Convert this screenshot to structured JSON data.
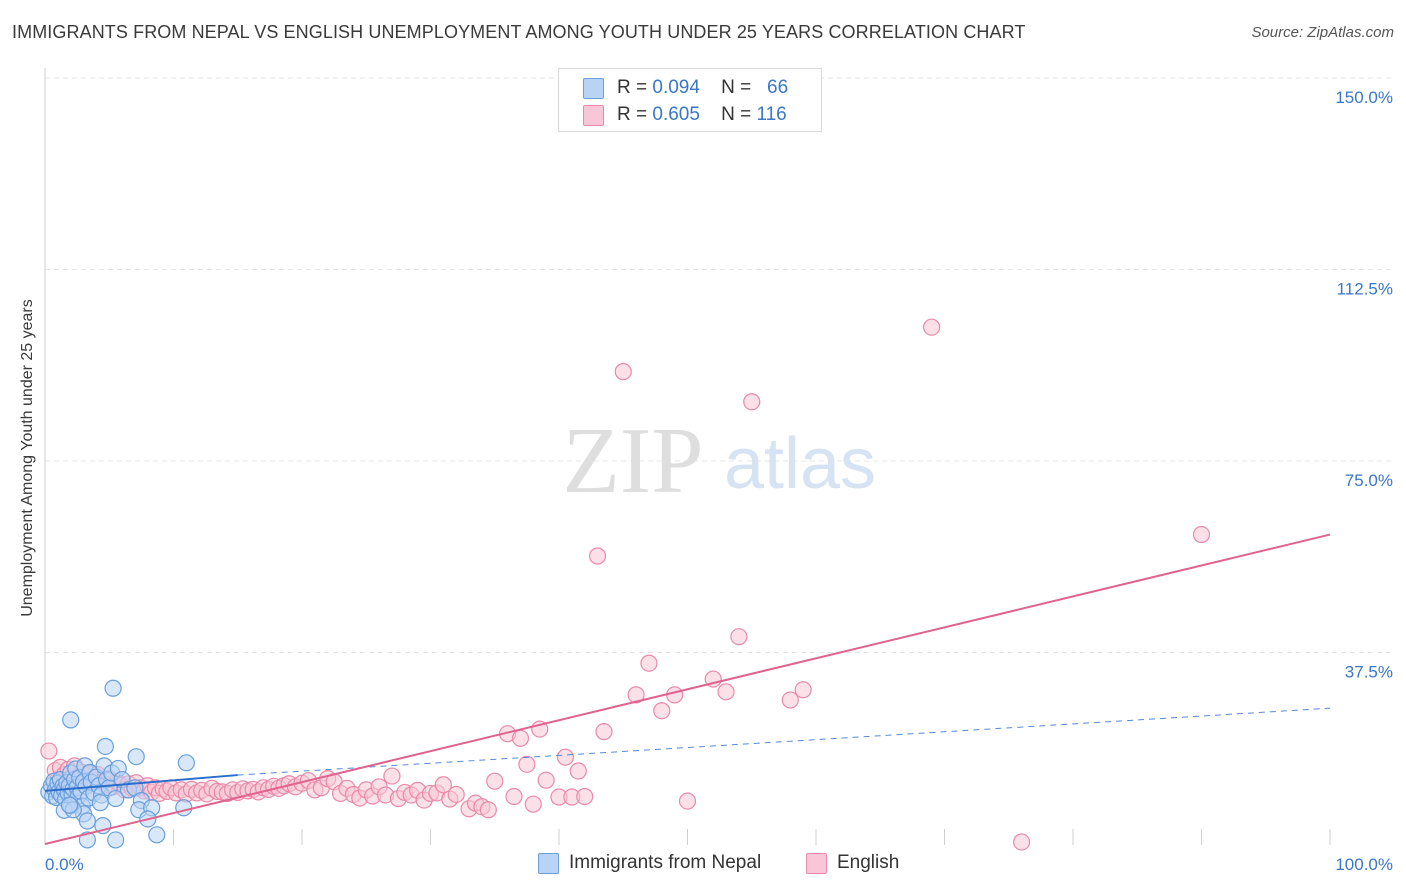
{
  "header": {
    "title": "IMMIGRANTS FROM NEPAL VS ENGLISH UNEMPLOYMENT AMONG YOUTH UNDER 25 YEARS CORRELATION CHART",
    "source": "Source: ZipAtlas.com"
  },
  "watermark": {
    "zip": "ZIP",
    "atlas": "atlas"
  },
  "legend_top": {
    "row1": {
      "r_label": "R =",
      "r_value": "0.094",
      "n_label": "N =",
      "n_value": "66"
    },
    "row2": {
      "r_label": "R =",
      "r_value": "0.605",
      "n_label": "N =",
      "n_value": "116"
    }
  },
  "legend_bottom": {
    "series1": "Immigrants from Nepal",
    "series2": "English"
  },
  "colors": {
    "blue_fill": "#b9d3f5",
    "blue_stroke": "#6a9fdc",
    "blue_line": "#2b6ccc",
    "pink_fill": "#f8c6d6",
    "pink_stroke": "#e88aaa",
    "pink_line": "#e0628e",
    "tick_label": "#3a77c8",
    "grid": "#e4e4e4"
  },
  "chart_data": {
    "type": "scatter",
    "title": "IMMIGRANTS FROM NEPAL VS ENGLISH UNEMPLOYMENT AMONG YOUTH UNDER 25 YEARS CORRELATION CHART",
    "xlabel": "",
    "ylabel": "Unemployment Among Youth under 25 years",
    "xlim": [
      0,
      100
    ],
    "ylim": [
      0,
      150
    ],
    "x_tick_labels": [
      "0.0%",
      "100.0%"
    ],
    "y_ticks": [
      37.5,
      75.0,
      112.5,
      150.0
    ],
    "y_tick_labels": [
      "37.5%",
      "75.0%",
      "112.5%",
      "150.0%"
    ],
    "legend_position": "top-center",
    "series": [
      {
        "name": "Immigrants from Nepal",
        "r": 0.094,
        "n": 66,
        "trend": {
          "x0": 0,
          "y0": 10.4,
          "x1": 15,
          "y1": 13.5,
          "dashed_extension_to_x": 100,
          "dashed_extension_y": 26.6
        },
        "points": [
          [
            0.3,
            10.2
          ],
          [
            0.5,
            11.4
          ],
          [
            0.6,
            9.4
          ],
          [
            0.7,
            12.3
          ],
          [
            0.8,
            10.5
          ],
          [
            0.9,
            9.1
          ],
          [
            1.0,
            11.9
          ],
          [
            1.1,
            10.2
          ],
          [
            1.2,
            12.6
          ],
          [
            1.3,
            9.5
          ],
          [
            1.4,
            11.3
          ],
          [
            1.5,
            10.6
          ],
          [
            1.6,
            8.8
          ],
          [
            1.7,
            12.0
          ],
          [
            1.8,
            10.0
          ],
          [
            1.9,
            11.4
          ],
          [
            2.0,
            13.9
          ],
          [
            2.1,
            9.7
          ],
          [
            2.2,
            10.8
          ],
          [
            2.3,
            12.6
          ],
          [
            2.4,
            14.7
          ],
          [
            2.5,
            11.1
          ],
          [
            2.6,
            9.4
          ],
          [
            2.7,
            13.0
          ],
          [
            2.8,
            10.3
          ],
          [
            2.9,
            7.4
          ],
          [
            3.0,
            12.2
          ],
          [
            3.1,
            15.3
          ],
          [
            3.2,
            11.3
          ],
          [
            3.4,
            9.0
          ],
          [
            3.5,
            14.0
          ],
          [
            3.6,
            12.1
          ],
          [
            3.8,
            10.0
          ],
          [
            4.0,
            13.1
          ],
          [
            4.2,
            11.4
          ],
          [
            4.4,
            9.6
          ],
          [
            4.6,
            15.3
          ],
          [
            4.8,
            12.6
          ],
          [
            5.0,
            11.0
          ],
          [
            5.2,
            13.9
          ],
          [
            5.5,
            8.9
          ],
          [
            5.7,
            14.8
          ],
          [
            6.0,
            12.6
          ],
          [
            6.5,
            10.6
          ],
          [
            7.0,
            11.0
          ],
          [
            7.5,
            8.5
          ],
          [
            4.3,
            8.1
          ],
          [
            3.0,
            5.9
          ],
          [
            2.0,
            7.5
          ],
          [
            1.5,
            6.6
          ],
          [
            3.3,
            4.5
          ],
          [
            4.5,
            3.6
          ],
          [
            2.2,
            6.7
          ],
          [
            1.9,
            7.6
          ],
          [
            2.0,
            24.3
          ],
          [
            5.3,
            30.5
          ],
          [
            4.7,
            19.1
          ],
          [
            7.3,
            6.7
          ],
          [
            8.3,
            7.1
          ],
          [
            10.8,
            7.1
          ],
          [
            7.1,
            17.1
          ],
          [
            11.0,
            15.9
          ],
          [
            8.7,
            1.8
          ],
          [
            3.3,
            0.8
          ],
          [
            5.5,
            0.8
          ],
          [
            8.0,
            4.9
          ]
        ]
      },
      {
        "name": "English",
        "r": 0.605,
        "n": 116,
        "trend": {
          "x0": 0,
          "y0": 0.0,
          "x1": 100,
          "y1": 60.6
        },
        "points": [
          [
            0.3,
            18.2
          ],
          [
            0.8,
            14.4
          ],
          [
            1.0,
            12.6
          ],
          [
            1.2,
            15.0
          ],
          [
            1.5,
            13.6
          ],
          [
            1.8,
            14.6
          ],
          [
            2.0,
            12.8
          ],
          [
            2.3,
            15.3
          ],
          [
            2.6,
            13.3
          ],
          [
            2.9,
            14.0
          ],
          [
            3.2,
            12.5
          ],
          [
            3.5,
            13.8
          ],
          [
            3.8,
            12.4
          ],
          [
            4.1,
            13.6
          ],
          [
            4.4,
            12.0
          ],
          [
            4.7,
            11.6
          ],
          [
            5.0,
            12.8
          ],
          [
            5.3,
            11.2
          ],
          [
            5.6,
            12.2
          ],
          [
            5.9,
            11.5
          ],
          [
            6.2,
            10.6
          ],
          [
            6.5,
            11.8
          ],
          [
            6.8,
            10.9
          ],
          [
            7.1,
            12.0
          ],
          [
            7.4,
            11.0
          ],
          [
            7.7,
            10.4
          ],
          [
            8.0,
            11.4
          ],
          [
            8.3,
            10.1
          ],
          [
            8.6,
            11.0
          ],
          [
            8.9,
            9.9
          ],
          [
            9.2,
            10.8
          ],
          [
            9.5,
            10.3
          ],
          [
            9.8,
            11.0
          ],
          [
            10.2,
            10.0
          ],
          [
            10.6,
            10.6
          ],
          [
            11.0,
            9.8
          ],
          [
            11.4,
            10.7
          ],
          [
            11.8,
            10.0
          ],
          [
            12.2,
            10.5
          ],
          [
            12.6,
            9.8
          ],
          [
            13.0,
            10.9
          ],
          [
            13.4,
            10.3
          ],
          [
            13.8,
            10.2
          ],
          [
            14.2,
            9.9
          ],
          [
            14.6,
            10.6
          ],
          [
            15.0,
            10.1
          ],
          [
            15.4,
            10.8
          ],
          [
            15.8,
            10.4
          ],
          [
            16.2,
            10.7
          ],
          [
            16.6,
            10.2
          ],
          [
            17.0,
            11.0
          ],
          [
            17.4,
            10.7
          ],
          [
            17.8,
            11.3
          ],
          [
            18.2,
            10.9
          ],
          [
            18.6,
            11.4
          ],
          [
            19.0,
            11.8
          ],
          [
            19.5,
            11.2
          ],
          [
            20.0,
            11.9
          ],
          [
            20.5,
            12.4
          ],
          [
            21.0,
            10.6
          ],
          [
            21.5,
            11.0
          ],
          [
            22.0,
            12.8
          ],
          [
            22.5,
            12.2
          ],
          [
            23.0,
            9.9
          ],
          [
            23.5,
            10.9
          ],
          [
            24.0,
            9.7
          ],
          [
            24.5,
            9.0
          ],
          [
            25.0,
            10.6
          ],
          [
            25.5,
            9.4
          ],
          [
            26.0,
            11.2
          ],
          [
            26.5,
            9.6
          ],
          [
            27.0,
            13.3
          ],
          [
            27.5,
            8.9
          ],
          [
            28.0,
            10.1
          ],
          [
            28.5,
            9.6
          ],
          [
            29.0,
            10.5
          ],
          [
            29.5,
            8.6
          ],
          [
            30.0,
            9.9
          ],
          [
            30.5,
            10.0
          ],
          [
            31.0,
            11.6
          ],
          [
            31.5,
            8.8
          ],
          [
            32.0,
            9.7
          ],
          [
            33.0,
            6.9
          ],
          [
            33.5,
            8.0
          ],
          [
            34.0,
            7.3
          ],
          [
            34.5,
            6.7
          ],
          [
            35.0,
            12.3
          ],
          [
            36.0,
            21.6
          ],
          [
            36.5,
            9.3
          ],
          [
            37.0,
            20.7
          ],
          [
            37.5,
            15.6
          ],
          [
            38.0,
            7.8
          ],
          [
            38.5,
            22.5
          ],
          [
            39.0,
            12.5
          ],
          [
            40.0,
            9.2
          ],
          [
            40.5,
            17.0
          ],
          [
            41.0,
            9.2
          ],
          [
            41.5,
            14.3
          ],
          [
            42.0,
            9.3
          ],
          [
            43.0,
            56.4
          ],
          [
            43.5,
            22.0
          ],
          [
            45.0,
            92.5
          ],
          [
            46.0,
            29.2
          ],
          [
            47.0,
            35.4
          ],
          [
            48.0,
            26.1
          ],
          [
            49.0,
            29.2
          ],
          [
            50.0,
            8.4
          ],
          [
            52.0,
            32.3
          ],
          [
            53.0,
            29.8
          ],
          [
            54.0,
            40.6
          ],
          [
            55.0,
            86.6
          ],
          [
            58.0,
            28.2
          ],
          [
            59.0,
            30.2
          ],
          [
            69.0,
            101.2
          ],
          [
            76.0,
            0.4
          ],
          [
            90.0,
            60.6
          ]
        ]
      }
    ]
  }
}
